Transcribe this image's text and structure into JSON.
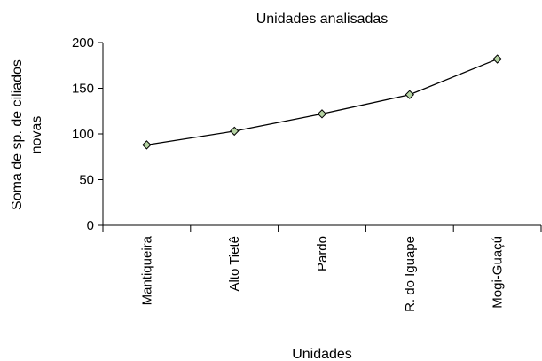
{
  "chart_data": {
    "type": "line",
    "title": "Unidades analisadas",
    "xlabel": "Unidades",
    "ylabel_lines": [
      "Soma de sp. de ciliados",
      "novas"
    ],
    "categories": [
      "Mantiqueira",
      "Alto Tietê",
      "Pardo",
      "R. do Iguape",
      "Mogi-Guaçú"
    ],
    "series": [
      {
        "values": [
          88,
          103,
          122,
          143,
          182
        ]
      }
    ],
    "ylim": [
      0,
      200
    ],
    "yticks": [
      0,
      50,
      100,
      150,
      200
    ],
    "grid": false,
    "legend": "none",
    "colors": {
      "line": "#000000",
      "marker_fill": "#b5d3a3",
      "marker_stroke": "#000000"
    }
  }
}
